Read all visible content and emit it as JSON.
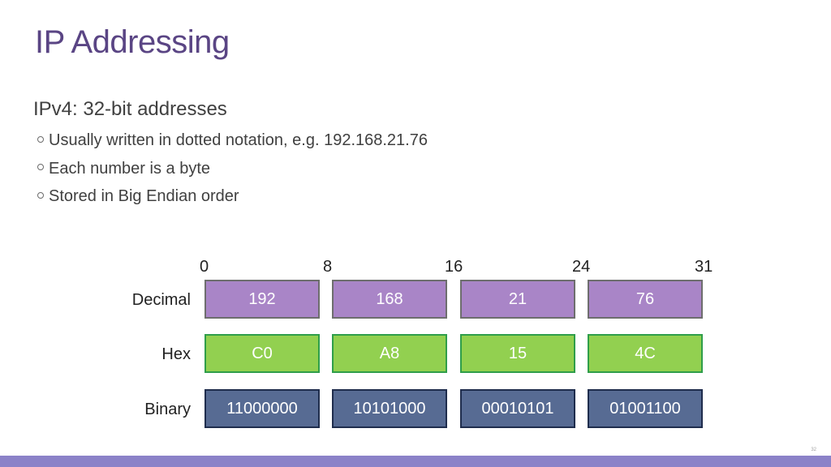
{
  "slide": {
    "title": "IP Addressing",
    "main_bullet": "IPv4: 32-bit addresses",
    "sub_bullets": [
      "Usually written in dotted notation, e.g. 192.168.21.76",
      "Each number is a byte",
      "Stored in Big Endian order"
    ],
    "page_number": "32"
  },
  "diagram": {
    "bit_positions": [
      "0",
      "8",
      "16",
      "24",
      "31"
    ],
    "rows": {
      "decimal": {
        "label": "Decimal",
        "values": [
          "192",
          "168",
          "21",
          "76"
        ]
      },
      "hex": {
        "label": "Hex",
        "values": [
          "C0",
          "A8",
          "15",
          "4C"
        ]
      },
      "binary": {
        "label": "Binary",
        "values": [
          "11000000",
          "10101000",
          "00010101",
          "01001100"
        ]
      }
    }
  },
  "colors": {
    "title": "#5a4584",
    "decimal_fill": "#a985c7",
    "hex_fill": "#92d050",
    "binary_fill": "#576b93",
    "footer_bar": "#8b82c8"
  }
}
